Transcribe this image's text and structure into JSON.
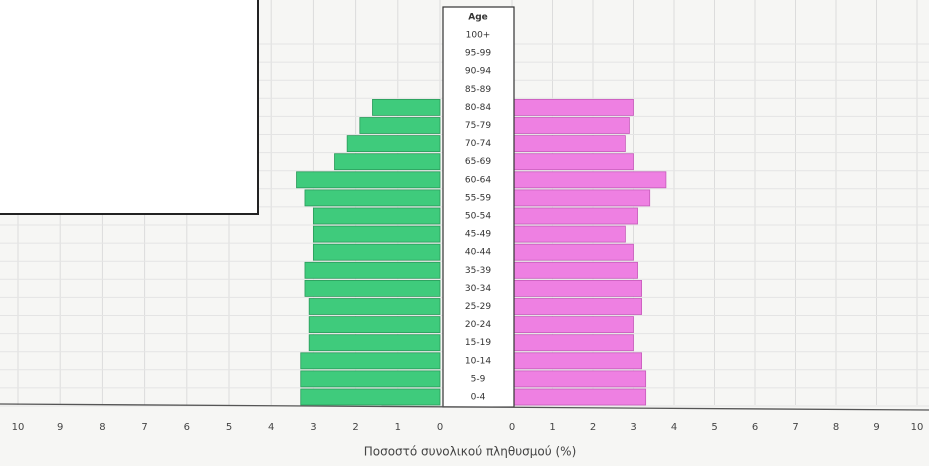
{
  "chart_data": {
    "type": "population-pyramid",
    "category_header": "Age",
    "categories": [
      "100+",
      "95-99",
      "90-94",
      "85-89",
      "80-84",
      "75-79",
      "70-74",
      "65-69",
      "60-64",
      "55-59",
      "50-54",
      "45-49",
      "40-44",
      "35-39",
      "30-34",
      "25-29",
      "20-24",
      "15-19",
      "10-14",
      "5-9",
      "0-4"
    ],
    "series": [
      {
        "color": "#3fcb7c",
        "side": "left",
        "values": [
          0,
          0,
          0,
          0,
          1.6,
          1.9,
          2.2,
          2.5,
          3.4,
          3.2,
          3.0,
          3.0,
          3.0,
          3.2,
          3.2,
          3.1,
          3.1,
          3.1,
          3.3,
          3.3,
          3.3
        ]
      },
      {
        "color": "#ee80e2",
        "side": "right",
        "values": [
          0,
          0,
          0,
          0,
          3.0,
          2.9,
          2.8,
          3.0,
          3.8,
          3.4,
          3.1,
          2.8,
          3.0,
          3.1,
          3.2,
          3.2,
          3.0,
          3.0,
          3.2,
          3.3,
          3.3
        ]
      }
    ],
    "xlim": [
      0,
      10
    ],
    "xticks": [
      0,
      1,
      2,
      3,
      4,
      5,
      6,
      7,
      8,
      9,
      10
    ],
    "xlabel": "Ποσοστό συνολικού πληθυσμού (%)",
    "grid": true
  }
}
